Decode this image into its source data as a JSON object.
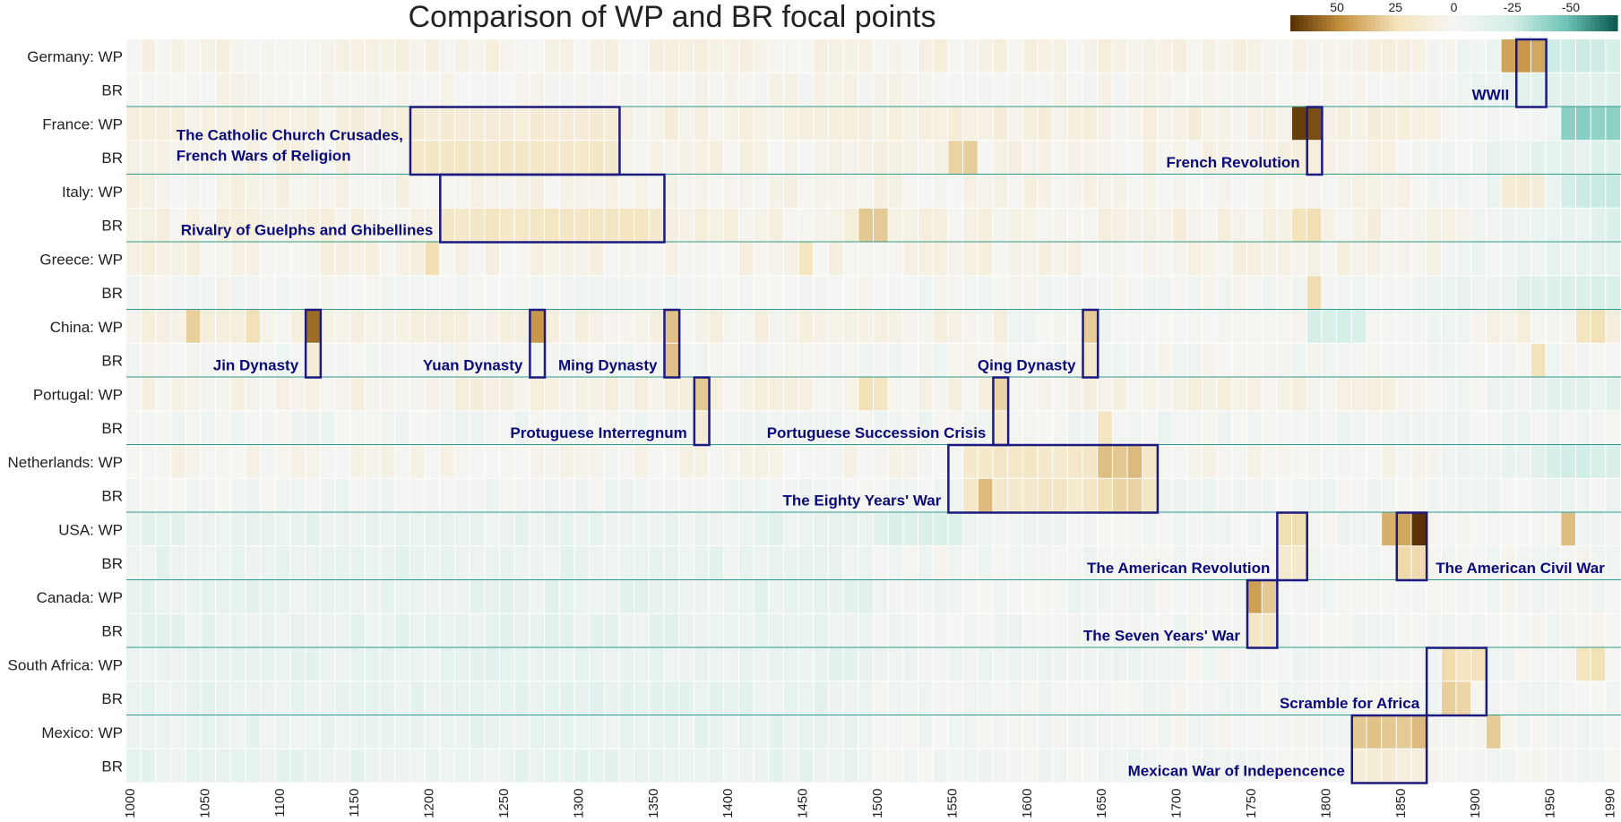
{
  "chart_data": {
    "type": "heatmap",
    "title": "Comparison of WP and BR focal points",
    "x_start": 1000,
    "x_end": 1990,
    "bin_years": 10,
    "x_ticks": [
      1000,
      1050,
      1100,
      1150,
      1200,
      1250,
      1300,
      1350,
      1400,
      1450,
      1500,
      1550,
      1600,
      1650,
      1700,
      1750,
      1800,
      1850,
      1900,
      1950,
      1990
    ],
    "colorbar": {
      "ticks": [
        "50",
        "25",
        "0",
        "-25",
        "-50"
      ],
      "tick_values": [
        50,
        25,
        0,
        -25,
        -50
      ],
      "range": [
        70,
        -70
      ],
      "placement": "top-right",
      "colors": {
        "pos_dark": "#5a3204",
        "pos_mid": "#c5913e",
        "pos_light": "#f4e4bc",
        "zero": "#f5f5f3",
        "neg_light": "#d6efe9",
        "neg_mid": "#6cc3b4",
        "neg_dark": "#0b5d52"
      }
    },
    "rows": [
      {
        "country": "Germany",
        "label": "Germany: WP",
        "source": "WP",
        "base": 5,
        "trend": "modern-neg"
      },
      {
        "country": "Germany",
        "label": "BR",
        "source": "BR",
        "base": 2,
        "trend": "modern-neg"
      },
      {
        "country": "France",
        "label": "France: WP",
        "source": "WP",
        "base": 7,
        "trend": "modern-neg"
      },
      {
        "country": "France",
        "label": "BR",
        "source": "BR",
        "base": 4,
        "trend": "modern-neg"
      },
      {
        "country": "Italy",
        "label": "Italy: WP",
        "source": "WP",
        "base": 4,
        "trend": "modern-neg"
      },
      {
        "country": "Italy",
        "label": "BR",
        "source": "BR",
        "base": 6,
        "trend": "modern-neg"
      },
      {
        "country": "Greece",
        "label": "Greece: WP",
        "source": "WP",
        "base": 5,
        "trend": "modern-neg"
      },
      {
        "country": "Greece",
        "label": "BR",
        "source": "BR",
        "base": -1,
        "trend": "modern-neg"
      },
      {
        "country": "China",
        "label": "China: WP",
        "source": "WP",
        "base": 6,
        "trend": "mid-neg"
      },
      {
        "country": "China",
        "label": "BR",
        "source": "BR",
        "base": -1,
        "trend": "mild"
      },
      {
        "country": "Portugal",
        "label": "Portugal: WP",
        "source": "WP",
        "base": 6,
        "trend": "modern-neg"
      },
      {
        "country": "Portugal",
        "label": "BR",
        "source": "BR",
        "base": -3,
        "trend": "mild"
      },
      {
        "country": "Netherlands",
        "label": "Netherlands: WP",
        "source": "WP",
        "base": 2,
        "trend": "modern-neg"
      },
      {
        "country": "Netherlands",
        "label": "BR",
        "source": "BR",
        "base": -3,
        "trend": "mild"
      },
      {
        "country": "USA",
        "label": "USA: WP",
        "source": "WP",
        "base": -5,
        "trend": "early-neg"
      },
      {
        "country": "USA",
        "label": "BR",
        "source": "BR",
        "base": -4,
        "trend": "early-neg"
      },
      {
        "country": "Canada",
        "label": "Canada: WP",
        "source": "WP",
        "base": -5,
        "trend": "early-neg"
      },
      {
        "country": "Canada",
        "label": "BR",
        "source": "BR",
        "base": -5,
        "trend": "early-neg"
      },
      {
        "country": "South Africa",
        "label": "South Africa: WP",
        "source": "WP",
        "base": -5,
        "trend": "early-neg"
      },
      {
        "country": "South Africa",
        "label": "BR",
        "source": "BR",
        "base": -5,
        "trend": "early-neg"
      },
      {
        "country": "Mexico",
        "label": "Mexico: WP",
        "source": "WP",
        "base": -4,
        "trend": "early-neg"
      },
      {
        "country": "Mexico",
        "label": "BR",
        "source": "BR",
        "base": -5,
        "trend": "early-neg"
      }
    ],
    "hotspots": [
      {
        "row": 0,
        "from": 1920,
        "to": 1940,
        "value": 45
      },
      {
        "row": 0,
        "from": 1950,
        "to": 1990,
        "value": -25
      },
      {
        "row": 1,
        "from": 1950,
        "to": 1990,
        "value": -15
      },
      {
        "row": 2,
        "from": 1780,
        "to": 1790,
        "value": 65
      },
      {
        "row": 2,
        "from": 1960,
        "to": 1990,
        "value": -40
      },
      {
        "row": 2,
        "from": 1190,
        "to": 1320,
        "value": 12
      },
      {
        "row": 3,
        "from": 1190,
        "to": 1320,
        "value": 18
      },
      {
        "row": 3,
        "from": 1550,
        "to": 1560,
        "value": 30
      },
      {
        "row": 3,
        "from": 1780,
        "to": 1790,
        "value": 8
      },
      {
        "row": 4,
        "from": 1960,
        "to": 1990,
        "value": -25
      },
      {
        "row": 4,
        "from": 1920,
        "to": 1940,
        "value": 14
      },
      {
        "row": 5,
        "from": 1210,
        "to": 1350,
        "value": 20
      },
      {
        "row": 5,
        "from": 1490,
        "to": 1500,
        "value": 30
      },
      {
        "row": 5,
        "from": 1780,
        "to": 1790,
        "value": 25
      },
      {
        "row": 6,
        "from": 1200,
        "to": 1200,
        "value": 25
      },
      {
        "row": 6,
        "from": 1450,
        "to": 1450,
        "value": 22
      },
      {
        "row": 7,
        "from": 1790,
        "to": 1790,
        "value": 25
      },
      {
        "row": 8,
        "from": 1040,
        "to": 1040,
        "value": 30
      },
      {
        "row": 8,
        "from": 1080,
        "to": 1080,
        "value": 25
      },
      {
        "row": 8,
        "from": 1120,
        "to": 1120,
        "value": 55
      },
      {
        "row": 8,
        "from": 1270,
        "to": 1270,
        "value": 50
      },
      {
        "row": 8,
        "from": 1360,
        "to": 1360,
        "value": 35
      },
      {
        "row": 8,
        "from": 1640,
        "to": 1640,
        "value": 30
      },
      {
        "row": 8,
        "from": 1790,
        "to": 1820,
        "value": -22
      },
      {
        "row": 8,
        "from": 1970,
        "to": 1980,
        "value": 25
      },
      {
        "row": 9,
        "from": 1120,
        "to": 1120,
        "value": 15
      },
      {
        "row": 9,
        "from": 1360,
        "to": 1360,
        "value": 35
      },
      {
        "row": 9,
        "from": 1640,
        "to": 1640,
        "value": 18
      },
      {
        "row": 9,
        "from": 1940,
        "to": 1940,
        "value": 22
      },
      {
        "row": 10,
        "from": 1380,
        "to": 1380,
        "value": 35
      },
      {
        "row": 10,
        "from": 1490,
        "to": 1500,
        "value": 25
      },
      {
        "row": 10,
        "from": 1580,
        "to": 1580,
        "value": 30
      },
      {
        "row": 11,
        "from": 1380,
        "to": 1380,
        "value": 15
      },
      {
        "row": 11,
        "from": 1580,
        "to": 1580,
        "value": 15
      },
      {
        "row": 11,
        "from": 1650,
        "to": 1650,
        "value": 20
      },
      {
        "row": 12,
        "from": 1560,
        "to": 1680,
        "value": 18
      },
      {
        "row": 12,
        "from": 1650,
        "to": 1670,
        "value": 35
      },
      {
        "row": 12,
        "from": 1950,
        "to": 1990,
        "value": -25
      },
      {
        "row": 13,
        "from": 1560,
        "to": 1680,
        "value": 18
      },
      {
        "row": 13,
        "from": 1570,
        "to": 1570,
        "value": 38
      },
      {
        "row": 13,
        "from": 1650,
        "to": 1670,
        "value": 28
      },
      {
        "row": 14,
        "from": 1500,
        "to": 1550,
        "value": -18
      },
      {
        "row": 14,
        "from": 1770,
        "to": 1780,
        "value": 25
      },
      {
        "row": 14,
        "from": 1840,
        "to": 1850,
        "value": 40
      },
      {
        "row": 14,
        "from": 1860,
        "to": 1860,
        "value": 70
      },
      {
        "row": 14,
        "from": 1960,
        "to": 1960,
        "value": 35
      },
      {
        "row": 15,
        "from": 1770,
        "to": 1780,
        "value": 15
      },
      {
        "row": 15,
        "from": 1850,
        "to": 1860,
        "value": 30
      },
      {
        "row": 16,
        "from": 1750,
        "to": 1750,
        "value": 42
      },
      {
        "row": 16,
        "from": 1760,
        "to": 1760,
        "value": 30
      },
      {
        "row": 17,
        "from": 1750,
        "to": 1760,
        "value": 20
      },
      {
        "row": 18,
        "from": 1880,
        "to": 1900,
        "value": 25
      },
      {
        "row": 18,
        "from": 1970,
        "to": 1980,
        "value": 25
      },
      {
        "row": 18,
        "from": 1500,
        "to": 1700,
        "value": -6
      },
      {
        "row": 19,
        "from": 1880,
        "to": 1890,
        "value": 30
      },
      {
        "row": 20,
        "from": 1820,
        "to": 1860,
        "value": 35
      },
      {
        "row": 20,
        "from": 1910,
        "to": 1910,
        "value": 30
      },
      {
        "row": 21,
        "from": 1820,
        "to": 1860,
        "value": 12
      }
    ],
    "annotations": [
      {
        "text": "WWII",
        "from": 1930,
        "to": 1940,
        "row_start": 0,
        "row_end": 1,
        "label_side": "left"
      },
      {
        "text": "The Catholic Church Crusades,",
        "text2": "French Wars of Religion",
        "from": 1190,
        "to": 1320,
        "row_start": 2,
        "row_end": 3,
        "label_side": "left"
      },
      {
        "text": "French Revolution",
        "from": 1790,
        "to": 1790,
        "row_start": 2,
        "row_end": 3,
        "label_side": "left"
      },
      {
        "text": "Rivalry of Guelphs and Ghibellines",
        "from": 1210,
        "to": 1350,
        "row_start": 4,
        "row_end": 5,
        "label_side": "left"
      },
      {
        "text": "Jin Dynasty",
        "from": 1120,
        "to": 1120,
        "row_start": 8,
        "row_end": 9,
        "label_side": "left"
      },
      {
        "text": "Yuan Dynasty",
        "from": 1270,
        "to": 1270,
        "row_start": 8,
        "row_end": 9,
        "label_side": "left"
      },
      {
        "text": "Ming Dynasty",
        "from": 1360,
        "to": 1360,
        "row_start": 8,
        "row_end": 9,
        "label_side": "left"
      },
      {
        "text": "Qing Dynasty",
        "from": 1640,
        "to": 1640,
        "row_start": 8,
        "row_end": 9,
        "label_side": "left"
      },
      {
        "text": "Protuguese Interregnum",
        "from": 1380,
        "to": 1380,
        "row_start": 10,
        "row_end": 11,
        "label_side": "left"
      },
      {
        "text": "Portuguese Succession Crisis",
        "from": 1580,
        "to": 1580,
        "row_start": 10,
        "row_end": 11,
        "label_side": "left"
      },
      {
        "text": "The Eighty Years' War",
        "from": 1550,
        "to": 1680,
        "row_start": 12,
        "row_end": 13,
        "label_side": "left"
      },
      {
        "text": "The American Revolution",
        "from": 1770,
        "to": 1780,
        "row_start": 14,
        "row_end": 15,
        "label_side": "left"
      },
      {
        "text": "The American Civil War",
        "from": 1850,
        "to": 1860,
        "row_start": 14,
        "row_end": 15,
        "label_side": "right"
      },
      {
        "text": "The Seven Years' War",
        "from": 1750,
        "to": 1760,
        "row_start": 16,
        "row_end": 17,
        "label_side": "left"
      },
      {
        "text": "Scramble for Africa",
        "from": 1870,
        "to": 1900,
        "row_start": 18,
        "row_end": 19,
        "label_side": "left"
      },
      {
        "text": "Mexican War of Indepencence",
        "from": 1820,
        "to": 1860,
        "row_start": 20,
        "row_end": 21,
        "label_side": "left"
      }
    ]
  }
}
